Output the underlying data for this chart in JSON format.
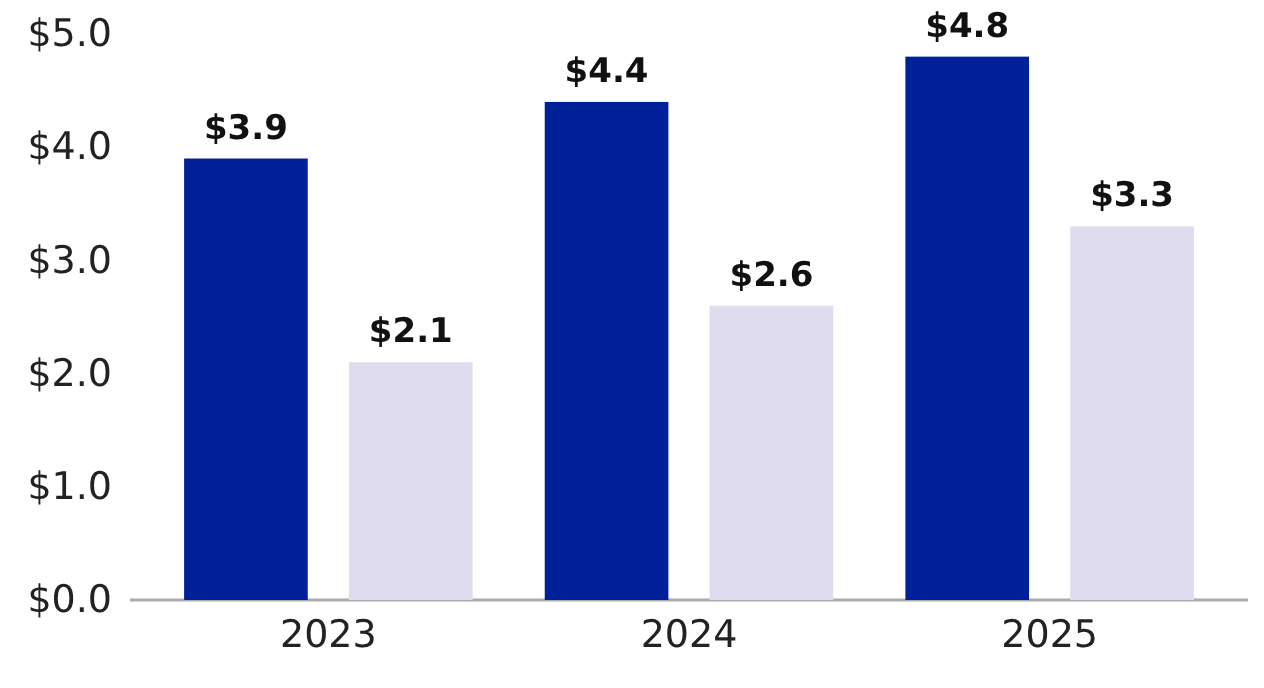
{
  "chart_data": {
    "type": "bar",
    "categories": [
      "2023",
      "2024",
      "2025"
    ],
    "series": [
      {
        "color": "#00209a",
        "values": [
          3.9,
          4.4,
          4.8
        ],
        "value_labels": [
          "$3.9",
          "$4.4",
          "$4.8"
        ]
      },
      {
        "color": "#dedcee",
        "values": [
          2.1,
          2.6,
          3.3
        ],
        "value_labels": [
          "$2.1",
          "$2.6",
          "$3.3"
        ]
      }
    ],
    "ylim": [
      0,
      5
    ],
    "yticks": [
      {
        "value": 0,
        "label": "$0.0"
      },
      {
        "value": 1,
        "label": "$1.0"
      },
      {
        "value": 2,
        "label": "$2.0"
      },
      {
        "value": 3,
        "label": "$3.0"
      },
      {
        "value": 4,
        "label": "$4.0"
      },
      {
        "value": 5,
        "label": "$5.0"
      }
    ],
    "grid": false
  }
}
